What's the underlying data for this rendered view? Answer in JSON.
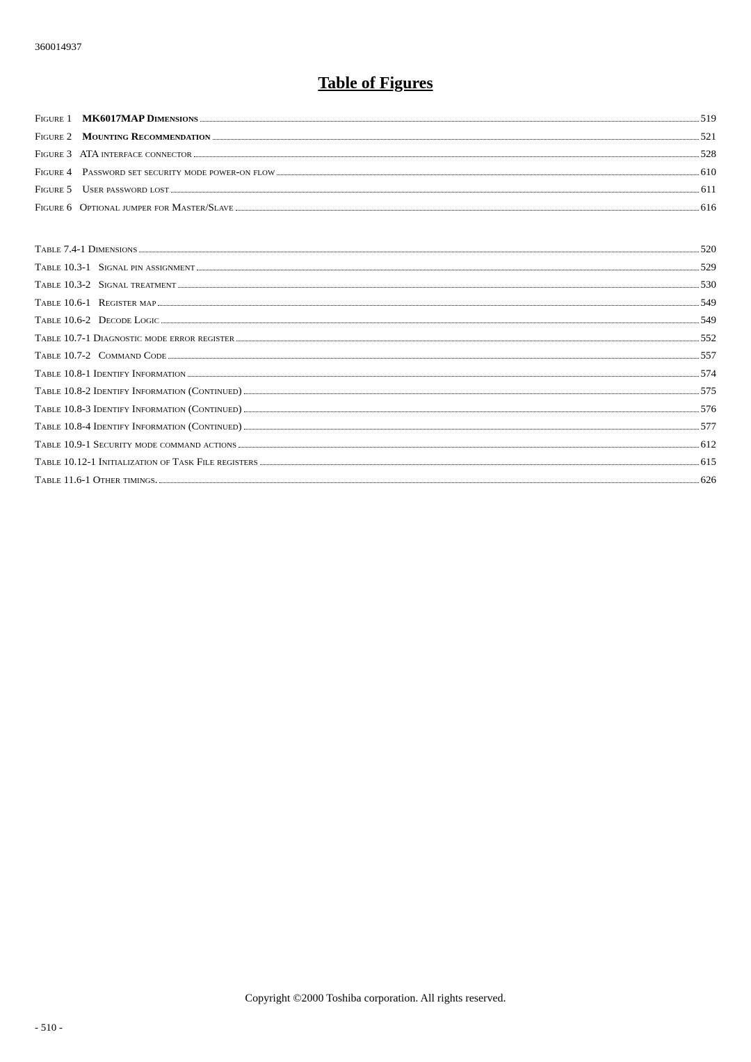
{
  "doc_id": "360014937",
  "title": "Table of Figures",
  "figures": [
    {
      "label_prefix": "Figure 1    ",
      "label_bold": "MK6017MAP Dimensions",
      "page": "519"
    },
    {
      "label_prefix": "Figure 2    ",
      "label_bold": "Mounting Recommendation",
      "page": "521"
    },
    {
      "label_prefix": "Figure 3   ",
      "label_rest": "ATA interface connector",
      "page": "528"
    },
    {
      "label_prefix": "Figure 4    ",
      "label_rest": "Password set security mode power-on flow",
      "page": "610"
    },
    {
      "label_prefix": "Figure 5    ",
      "label_rest": "User password lost",
      "page": "611"
    },
    {
      "label_prefix": "Figure 6   ",
      "label_rest": "Optional jumper for Master/Slave",
      "page": "616"
    }
  ],
  "tables": [
    {
      "label": "Table 7.4-1 Dimensions",
      "page": "520"
    },
    {
      "label": "Table 10.3-1   Signal pin assignment",
      "page": "529"
    },
    {
      "label": "Table 10.3-2   Signal treatment",
      "page": "530"
    },
    {
      "label": "Table 10.6-1   Register map",
      "page": "549"
    },
    {
      "label": "Table 10.6-2   Decode Logic",
      "page": "549"
    },
    {
      "label": "Table 10.7-1 Diagnostic mode error register",
      "page": "552"
    },
    {
      "label": "Table 10.7-2   Command Code",
      "page": "557"
    },
    {
      "label": "Table 10.8-1 Identify Information",
      "page": "574"
    },
    {
      "label": "Table 10.8-2 Identify Information (Continued)",
      "page": "575"
    },
    {
      "label": "Table 10.8-3 Identify Information (Continued)",
      "page": "576"
    },
    {
      "label": "Table 10.8-4 Identify Information (Continued)",
      "page": "577"
    },
    {
      "label": "Table 10.9-1 Security mode command actions",
      "page": "612"
    },
    {
      "label": "Table 10.12-1 Initialization of Task File registers",
      "page": "615"
    },
    {
      "label": "Table 11.6-1 Other timings.",
      "page": "626"
    }
  ],
  "copyright": "Copyright ©2000 Toshiba corporation. All rights reserved.",
  "page_number": "- 510 -"
}
